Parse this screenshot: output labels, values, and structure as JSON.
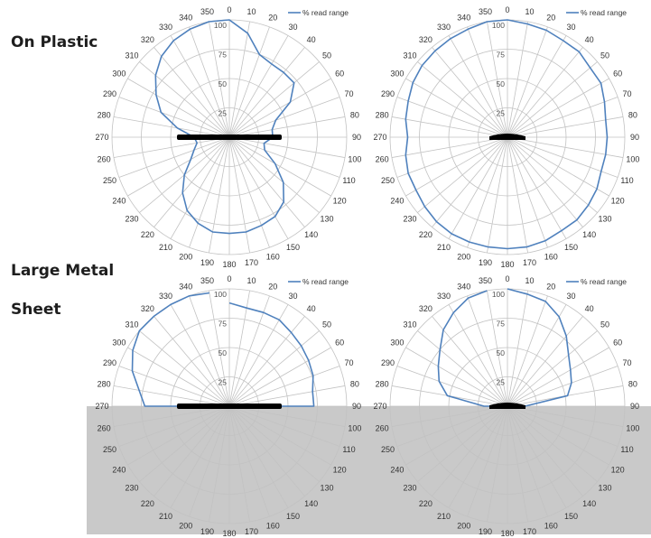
{
  "labels": {
    "on_plastic": "On Plastic",
    "large_metal_line1": "Large Metal",
    "large_metal_line2": "Sheet"
  },
  "colors": {
    "series": "#4f81bd",
    "metal_sheet": "#c9c9c9",
    "grid": "#c2c2c2",
    "antenna": "#000000"
  },
  "chart_data": [
    {
      "type": "polar-line",
      "panel": "On Plastic, wide antenna",
      "theta_labels": [
        "0",
        "10",
        "20",
        "30",
        "40",
        "50",
        "60",
        "70",
        "80",
        "90",
        "100",
        "110",
        "120",
        "130",
        "140",
        "150",
        "160",
        "170",
        "180",
        "190",
        "200",
        "210",
        "220",
        "230",
        "240",
        "250",
        "260",
        "270",
        "280",
        "290",
        "300",
        "310",
        "320",
        "330",
        "340",
        "350"
      ],
      "r_ticks": [
        "25",
        "50",
        "75",
        "100"
      ],
      "rlim": [
        0,
        100
      ],
      "legend": {
        "series_name": "% read range",
        "position": "top-right"
      },
      "antenna": "wide",
      "series": [
        {
          "name": "% read range",
          "theta": [
            0,
            10,
            20,
            30,
            40,
            50,
            60,
            70,
            80,
            90,
            100,
            110,
            120,
            130,
            140,
            150,
            160,
            170,
            180,
            190,
            200,
            210,
            220,
            230,
            240,
            250,
            260,
            270,
            280,
            290,
            300,
            310,
            320,
            330,
            340,
            350
          ],
          "r": [
            100,
            90,
            75,
            72,
            72,
            72,
            60,
            42,
            37,
            37,
            30,
            32,
            45,
            60,
            72,
            78,
            80,
            82,
            82,
            82,
            78,
            72,
            62,
            50,
            38,
            32,
            28,
            30,
            45,
            62,
            72,
            82,
            90,
            95,
            98,
            100
          ]
        }
      ]
    },
    {
      "type": "polar-line",
      "panel": "On Plastic, small antenna",
      "theta_labels": [
        "0",
        "10",
        "20",
        "30",
        "40",
        "50",
        "60",
        "70",
        "80",
        "90",
        "100",
        "110",
        "120",
        "130",
        "140",
        "150",
        "160",
        "170",
        "180",
        "190",
        "200",
        "210",
        "220",
        "230",
        "240",
        "250",
        "260",
        "270",
        "280",
        "290",
        "300",
        "310",
        "320",
        "330",
        "340",
        "350"
      ],
      "r_ticks": [
        "25",
        "50",
        "75",
        "100"
      ],
      "rlim": [
        0,
        100
      ],
      "legend": {
        "series_name": "% read range",
        "position": "top-right"
      },
      "antenna": "small",
      "series": [
        {
          "name": "% read range",
          "theta": [
            0,
            10,
            20,
            30,
            40,
            50,
            60,
            70,
            80,
            90,
            100,
            110,
            120,
            130,
            140,
            150,
            160,
            170,
            180,
            190,
            200,
            210,
            220,
            230,
            240,
            250,
            260,
            270,
            280,
            290,
            300,
            310,
            320,
            330,
            340,
            350
          ],
          "r": [
            100,
            98,
            97,
            95,
            95,
            92,
            92,
            88,
            85,
            85,
            85,
            85,
            88,
            90,
            92,
            92,
            94,
            95,
            95,
            95,
            95,
            95,
            94,
            92,
            90,
            90,
            88,
            85,
            88,
            90,
            93,
            95,
            96,
            97,
            98,
            100
          ]
        }
      ]
    },
    {
      "type": "polar-line",
      "panel": "Large Metal Sheet, wide antenna",
      "theta_labels": [
        "0",
        "10",
        "20",
        "30",
        "40",
        "50",
        "60",
        "70",
        "80",
        "90",
        "100",
        "110",
        "120",
        "130",
        "140",
        "150",
        "160",
        "170",
        "180",
        "190",
        "200",
        "210",
        "220",
        "230",
        "240",
        "250",
        "260",
        "270",
        "280",
        "290",
        "300",
        "310",
        "320",
        "330",
        "340",
        "350"
      ],
      "r_ticks": [
        "25",
        "50",
        "75",
        "100"
      ],
      "rlim": [
        0,
        100
      ],
      "legend": {
        "series_name": "% read range",
        "position": "top-right"
      },
      "antenna": "wide",
      "series": [
        {
          "name": "% read range",
          "theta": [
            0,
            10,
            20,
            30,
            40,
            50,
            60,
            70,
            80,
            90,
            270,
            280,
            290,
            300,
            310,
            320,
            330,
            340,
            350
          ],
          "r": [
            88,
            85,
            85,
            85,
            82,
            80,
            78,
            76,
            72,
            72,
            72,
            78,
            88,
            95,
            100,
            100,
            100,
            100,
            98
          ]
        }
      ]
    },
    {
      "type": "polar-line",
      "panel": "Large Metal Sheet, small antenna",
      "theta_labels": [
        "0",
        "10",
        "20",
        "30",
        "40",
        "50",
        "60",
        "70",
        "80",
        "90",
        "100",
        "110",
        "120",
        "130",
        "140",
        "150",
        "160",
        "170",
        "180",
        "190",
        "200",
        "210",
        "220",
        "230",
        "240",
        "250",
        "260",
        "270",
        "280",
        "290",
        "300",
        "310",
        "320",
        "330",
        "340",
        "350"
      ],
      "r_ticks": [
        "25",
        "50",
        "75",
        "100"
      ],
      "rlim": [
        0,
        100
      ],
      "legend": {
        "series_name": "% read range",
        "position": "top-right"
      },
      "antenna": "small",
      "series": [
        {
          "name": "% read range",
          "theta": [
            0,
            10,
            20,
            30,
            40,
            50,
            60,
            70,
            80,
            90,
            270,
            280,
            290,
            300,
            310,
            320,
            330,
            340,
            350
          ],
          "r": [
            100,
            97,
            95,
            88,
            78,
            68,
            62,
            58,
            52,
            15,
            20,
            52,
            62,
            68,
            75,
            85,
            92,
            98,
            100
          ]
        }
      ]
    }
  ]
}
